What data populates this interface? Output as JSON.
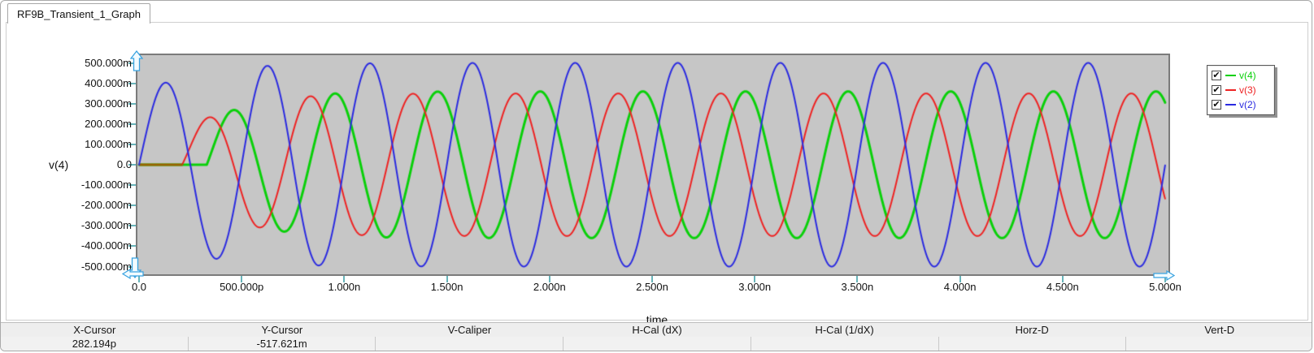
{
  "window": {
    "tab_label": "RF9B_Transient_1_Graph"
  },
  "legend": {
    "items": [
      {
        "label": "v(4)",
        "color": "#0ad00a",
        "checked": true
      },
      {
        "label": "v(3)",
        "color": "#ee2222",
        "checked": true
      },
      {
        "label": "v(2)",
        "color": "#2a2ae0",
        "checked": true
      }
    ],
    "check_glyph": "✔"
  },
  "chart_data": {
    "type": "line",
    "title": "",
    "xlabel": "time",
    "ylabel": "v(4)",
    "x_range_ps": [
      0,
      5000
    ],
    "y_range_mv": [
      -500,
      500
    ],
    "x_tick_labels": [
      "0.0",
      "500.000p",
      "1.000n",
      "1.500n",
      "2.000n",
      "2.500n",
      "3.000n",
      "3.500n",
      "4.000n",
      "4.500n",
      "5.000n"
    ],
    "y_tick_labels": [
      "500.000m",
      "400.000m",
      "300.000m",
      "200.000m",
      "100.000m",
      "0.0",
      "-100.000m",
      "-200.000m",
      "-300.000m",
      "-400.000m",
      "-500.000m"
    ],
    "grid": false,
    "legend_position": "top-right",
    "plot_bg": "#c6c6c6",
    "axis_tick_color": "#68b4ba",
    "series": [
      {
        "name": "v(4)",
        "color": "#0ad00a",
        "line_width": 3,
        "wave": {
          "shape": "sine",
          "onset_ps": 330,
          "period_ps": 500,
          "amp_mv": 360,
          "rise_t0_ps": 285,
          "rise_tau_ps": 430
        },
        "description": "2 GHz sine; flat 0 V until ~0.33 ns, first peak ~275 mV growing to ~360 mV steady amplitude"
      },
      {
        "name": "v(3)",
        "color": "#ee2222",
        "line_width": 2,
        "wave": {
          "shape": "sine",
          "onset_ps": 210,
          "period_ps": 500,
          "amp_mv": 350,
          "rise_t0_ps": 215,
          "rise_tau_ps": 430
        },
        "description": "2 GHz sine; flat 0 V until ~0.21 ns, first peak ~235 mV growing to ~350 mV steady amplitude"
      },
      {
        "name": "v(2)",
        "color": "#2a2ae0",
        "line_width": 2,
        "wave": {
          "shape": "sine",
          "onset_ps": 0,
          "period_ps": 500,
          "amp_mv": 500,
          "rise_t0_ps": 430,
          "rise_tau_ps": 500
        },
        "description": "2 GHz sine from t=0; first peak ~405 mV growing to ~500 mV steady amplitude"
      }
    ],
    "overlap_segment": {
      "color": "#9a6200",
      "t_start_ps": 0,
      "t_end_ps": 212,
      "value_mv": 0,
      "line_width": 3,
      "description": "brown segment where v(3) and v(4) traces overlap at 0 V"
    }
  },
  "status_bar": {
    "columns": [
      {
        "label": "X-Cursor",
        "value": "282.194p"
      },
      {
        "label": "Y-Cursor",
        "value": "-517.621m"
      },
      {
        "label": "V-Caliper",
        "value": ""
      },
      {
        "label": "H-Cal (dX)",
        "value": ""
      },
      {
        "label": "H-Cal (1/dX)",
        "value": ""
      },
      {
        "label": "Horz-D",
        "value": ""
      },
      {
        "label": "Vert-D",
        "value": ""
      }
    ]
  }
}
